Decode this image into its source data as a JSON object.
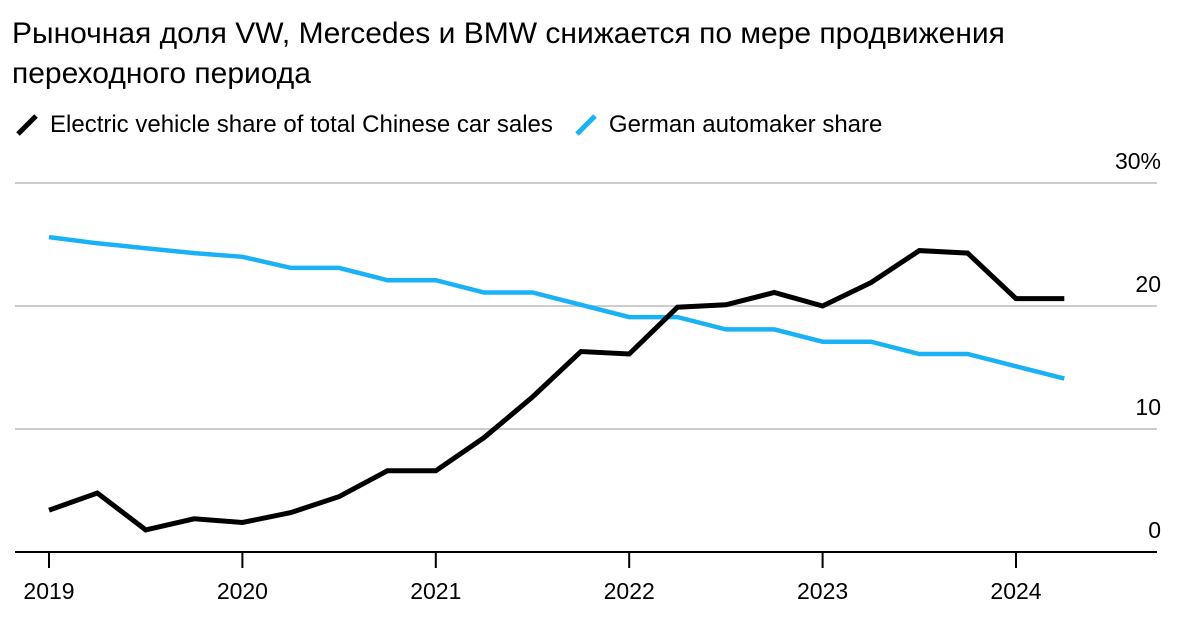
{
  "title": "Рыночная доля VW, Mercedes и BMW снижается по мере продвижения переходного периода",
  "colors": {
    "ev": "#000000",
    "german": "#1ab2f5",
    "grid": "#cccccc",
    "axis": "#000000"
  },
  "chart_data": {
    "type": "line",
    "title": "Рыночная доля VW, Mercedes и BMW снижается по мере продвижения переходного периода",
    "xlabel": "",
    "ylabel": "",
    "xlim": [
      2019,
      2024.75
    ],
    "ylim": [
      0,
      30
    ],
    "y_ticks": [
      {
        "value": 0,
        "label": "0"
      },
      {
        "value": 10,
        "label": "10"
      },
      {
        "value": 20,
        "label": "20"
      },
      {
        "value": 30,
        "label": "30%"
      }
    ],
    "x_ticks": [
      {
        "value": 2019,
        "label": "2019"
      },
      {
        "value": 2020,
        "label": "2020"
      },
      {
        "value": 2021,
        "label": "2021"
      },
      {
        "value": 2022,
        "label": "2022"
      },
      {
        "value": 2023,
        "label": "2023"
      },
      {
        "value": 2024,
        "label": "2024"
      }
    ],
    "legend_position": "top-left",
    "series": [
      {
        "name": "Electric vehicle share of total Chinese car sales",
        "color": "#000000",
        "x": [
          2019,
          2019.25,
          2019.5,
          2019.75,
          2020,
          2020.25,
          2020.5,
          2020.75,
          2021,
          2021.25,
          2021.5,
          2021.75,
          2022,
          2022.25,
          2022.5,
          2022.75,
          2023,
          2023.25,
          2023.5,
          2023.75,
          2024,
          2024.25
        ],
        "values": [
          3.4,
          4.8,
          1.8,
          2.7,
          2.4,
          3.2,
          4.5,
          6.6,
          6.6,
          9.3,
          12.6,
          16.3,
          16.1,
          19.9,
          20.1,
          21.1,
          20.0,
          21.9,
          24.5,
          24.3,
          20.6,
          20.6
        ]
      },
      {
        "name": "German automaker share",
        "color": "#1ab2f5",
        "x": [
          2019,
          2019.25,
          2019.5,
          2019.75,
          2020,
          2020.25,
          2020.5,
          2020.75,
          2021,
          2021.25,
          2021.5,
          2021.75,
          2022,
          2022.25,
          2022.5,
          2022.75,
          2023,
          2023.25,
          2023.5,
          2023.75,
          2024,
          2024.25
        ],
        "values": [
          25.6,
          25.1,
          24.7,
          24.3,
          24.0,
          23.1,
          23.1,
          22.1,
          22.1,
          21.1,
          21.1,
          20.1,
          19.1,
          19.1,
          18.1,
          18.1,
          17.1,
          17.1,
          16.1,
          16.1,
          15.1,
          14.1
        ]
      }
    ]
  }
}
